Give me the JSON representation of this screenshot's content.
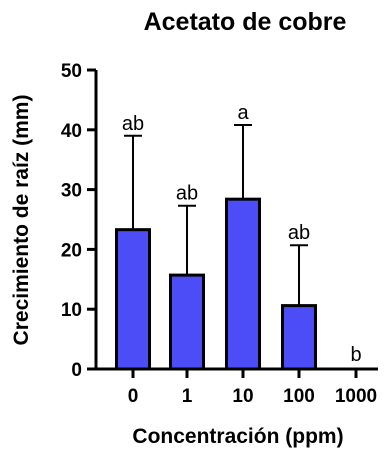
{
  "chart_data": {
    "type": "bar",
    "title": "Acetato de cobre",
    "xlabel": "Concentración (ppm)",
    "ylabel": "Crecimiento de raíz (mm)",
    "categories": [
      "0",
      "1",
      "10",
      "100",
      "1000"
    ],
    "values": [
      23.3,
      15.7,
      28.4,
      10.6,
      0
    ],
    "error_upper": [
      39.0,
      27.3,
      40.8,
      20.7,
      0
    ],
    "significance_labels": [
      "ab",
      "ab",
      "a",
      "ab",
      "b"
    ],
    "ylim": [
      0,
      50
    ],
    "yticks": [
      "0",
      "10",
      "20",
      "30",
      "40",
      "50"
    ],
    "bar_color": "#4d4df7",
    "grid": false
  }
}
